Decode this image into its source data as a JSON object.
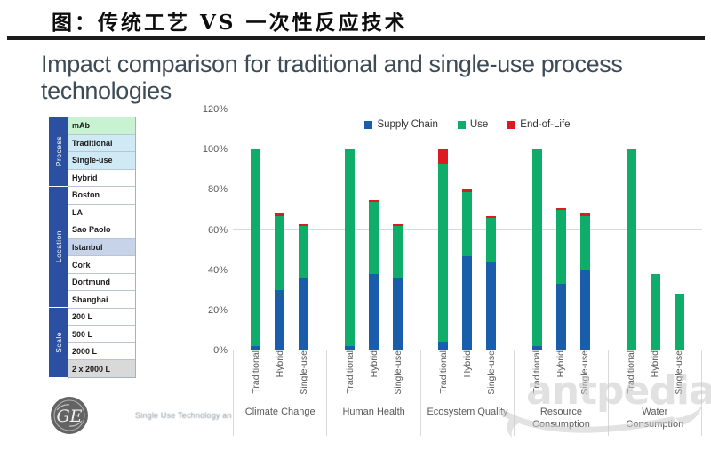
{
  "page": {
    "title_cn": "图：传统工艺 VS 一次性反应技术",
    "subtitle": "Impact comparison for traditional and single-use process technologies"
  },
  "sidebar": {
    "sections": [
      {
        "label": "Process",
        "rows": [
          {
            "label": "mAb",
            "bg": "#c9f2d3"
          },
          {
            "label": "Traditional",
            "bg": "#cfe9f5"
          },
          {
            "label": "Single-use",
            "bg": "#cfe9f5"
          },
          {
            "label": "Hybrid",
            "bg": "#ffffff"
          }
        ]
      },
      {
        "label": "Location",
        "rows": [
          {
            "label": "Boston",
            "bg": "#ffffff"
          },
          {
            "label": "LA",
            "bg": "#ffffff"
          },
          {
            "label": "Sao Paolo",
            "bg": "#ffffff"
          },
          {
            "label": "Istanbul",
            "bg": "#c6d3e8"
          },
          {
            "label": "Cork",
            "bg": "#ffffff"
          },
          {
            "label": "Dortmund",
            "bg": "#ffffff"
          },
          {
            "label": "Shanghai",
            "bg": "#ffffff"
          }
        ]
      },
      {
        "label": "Scale",
        "rows": [
          {
            "label": "200 L",
            "bg": "#ffffff"
          },
          {
            "label": "500 L",
            "bg": "#ffffff"
          },
          {
            "label": "2000 L",
            "bg": "#ffffff"
          },
          {
            "label": "2 x 2000 L",
            "bg": "#d9d9d9"
          }
        ]
      }
    ]
  },
  "chart_data": {
    "type": "bar",
    "stacked": true,
    "title": "",
    "categories": [
      "Climate Change",
      "Human Health",
      "Ecosystem Quality",
      "Resource Consumption",
      "Water Consumption"
    ],
    "x_sublabels": [
      "Traditional",
      "Hybrid",
      "Single-use"
    ],
    "series": [
      {
        "name": "Supply Chain",
        "color": "#1a5dab",
        "values": [
          [
            2,
            30,
            36
          ],
          [
            2,
            38,
            36
          ],
          [
            4,
            47,
            44
          ],
          [
            2,
            33,
            40
          ],
          [
            0,
            0,
            0
          ]
        ]
      },
      {
        "name": "Use",
        "color": "#10ad6a",
        "values": [
          [
            98,
            37,
            26
          ],
          [
            98,
            36,
            26
          ],
          [
            89,
            32,
            22
          ],
          [
            98,
            37,
            27
          ],
          [
            100,
            38,
            28
          ]
        ]
      },
      {
        "name": "End-of-Life",
        "color": "#dd1a21",
        "values": [
          [
            0,
            1,
            1
          ],
          [
            0,
            1,
            1
          ],
          [
            7,
            1,
            1
          ],
          [
            0,
            1,
            1
          ],
          [
            0,
            0,
            0
          ]
        ]
      }
    ],
    "yticks": [
      "0%",
      "20%",
      "40%",
      "60%",
      "80%",
      "100%",
      "120%"
    ],
    "ylim": [
      0,
      120
    ],
    "grid": true,
    "legend_position": "top-center"
  },
  "footer": {
    "logo": "GE",
    "text": "Single Use Technology an"
  },
  "watermark": "antpedia"
}
